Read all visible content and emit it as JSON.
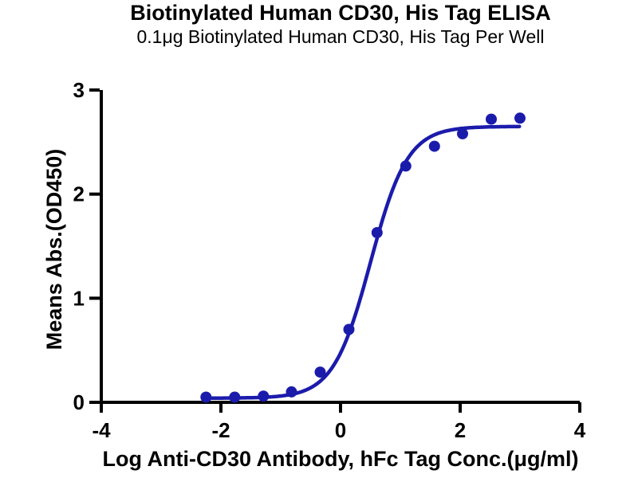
{
  "page": {
    "background_color": "#ffffff"
  },
  "chart_data": {
    "type": "scatter",
    "title": "Biotinylated Human CD30, His Tag ELISA",
    "subtitle": "0.1μg Biotinylated Human CD30, His Tag Per Well",
    "xlabel": "Log Anti-CD30 Antibody, hFc Tag Conc.(μg/ml)",
    "ylabel": "Means Abs.(OD450)",
    "xlim": [
      -4,
      4
    ],
    "ylim": [
      0,
      3
    ],
    "x_ticks": [
      -4,
      -2,
      0,
      2,
      4
    ],
    "y_ticks": [
      0,
      1,
      2,
      3
    ],
    "grid": false,
    "legend_position": "none",
    "axis_color": "#000000",
    "series": [
      {
        "name": "Anti-CD30 Antibody, hFc Tag",
        "color": "#1B1BAB",
        "marker": "circle",
        "points": [
          {
            "x": -2.25,
            "y": 0.05
          },
          {
            "x": -1.77,
            "y": 0.05
          },
          {
            "x": -1.29,
            "y": 0.06
          },
          {
            "x": -0.82,
            "y": 0.1
          },
          {
            "x": -0.34,
            "y": 0.29
          },
          {
            "x": 0.14,
            "y": 0.7
          },
          {
            "x": 0.61,
            "y": 1.63
          },
          {
            "x": 1.09,
            "y": 2.27
          },
          {
            "x": 1.57,
            "y": 2.46
          },
          {
            "x": 2.04,
            "y": 2.58
          },
          {
            "x": 2.52,
            "y": 2.72
          },
          {
            "x": 3.0,
            "y": 2.73
          }
        ],
        "fit_curve": {
          "model": "4PL",
          "bottom": 0.04,
          "top": 2.65,
          "logEC50": 0.5,
          "hillslope": 1.4,
          "x_start": -2.27,
          "x_end": 3.0
        }
      }
    ]
  }
}
